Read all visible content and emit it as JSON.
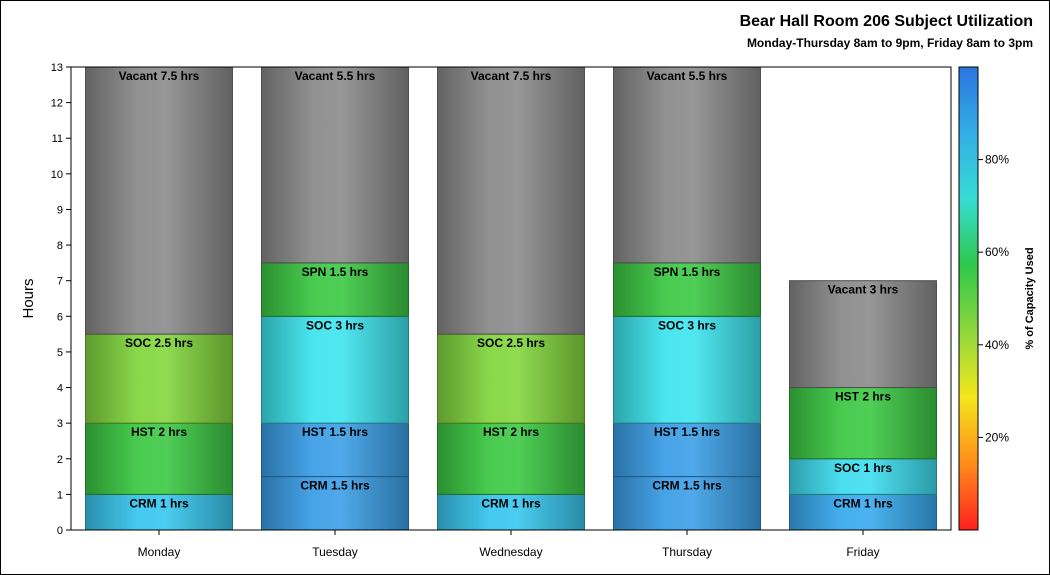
{
  "chart_data": {
    "type": "bar",
    "stacked": true,
    "title": "Bear Hall Room 206 Subject Utilization",
    "subtitle": "Monday-Thursday 8am to 9pm, Friday 8am to 3pm",
    "ylabel": "Hours",
    "ylim": [
      0,
      13
    ],
    "yticks": [
      0,
      1,
      2,
      3,
      4,
      5,
      6,
      7,
      8,
      9,
      10,
      11,
      12,
      13
    ],
    "categories": [
      "Monday",
      "Tuesday",
      "Wednesday",
      "Thursday",
      "Friday"
    ],
    "stacks": [
      [
        {
          "subject": "CRM",
          "hours": 1,
          "label": "CRM 1 hrs",
          "color": "#38c6ee"
        },
        {
          "subject": "HST",
          "hours": 2,
          "label": "HST 2 hrs",
          "color": "#3cc844"
        },
        {
          "subject": "SOC",
          "hours": 2.5,
          "label": "SOC 2.5 hrs",
          "color": "#82d63e"
        },
        {
          "subject": "Vacant",
          "hours": 7.5,
          "label": "Vacant 7.5 hrs",
          "color": "#8a8a8a"
        }
      ],
      [
        {
          "subject": "CRM",
          "hours": 1.5,
          "label": "CRM 1.5 hrs",
          "color": "#3b9ee6"
        },
        {
          "subject": "HST",
          "hours": 1.5,
          "label": "HST 1.5 hrs",
          "color": "#3b9ee6"
        },
        {
          "subject": "SOC",
          "hours": 3,
          "label": "SOC 3 hrs",
          "color": "#3ee4ee"
        },
        {
          "subject": "SPN",
          "hours": 1.5,
          "label": "SPN 1.5 hrs",
          "color": "#3cc844"
        },
        {
          "subject": "Vacant",
          "hours": 5.5,
          "label": "Vacant 5.5 hrs",
          "color": "#8a8a8a"
        }
      ],
      [
        {
          "subject": "CRM",
          "hours": 1,
          "label": "CRM 1 hrs",
          "color": "#38c6ee"
        },
        {
          "subject": "HST",
          "hours": 2,
          "label": "HST 2 hrs",
          "color": "#3cc844"
        },
        {
          "subject": "SOC",
          "hours": 2.5,
          "label": "SOC 2.5 hrs",
          "color": "#82d63e"
        },
        {
          "subject": "Vacant",
          "hours": 7.5,
          "label": "Vacant 7.5 hrs",
          "color": "#8a8a8a"
        }
      ],
      [
        {
          "subject": "CRM",
          "hours": 1.5,
          "label": "CRM 1.5 hrs",
          "color": "#3b9ee6"
        },
        {
          "subject": "HST",
          "hours": 1.5,
          "label": "HST 1.5 hrs",
          "color": "#3b9ee6"
        },
        {
          "subject": "SOC",
          "hours": 3,
          "label": "SOC 3 hrs",
          "color": "#3ee4ee"
        },
        {
          "subject": "SPN",
          "hours": 1.5,
          "label": "SPN 1.5 hrs",
          "color": "#3cc844"
        },
        {
          "subject": "Vacant",
          "hours": 5.5,
          "label": "Vacant 5.5 hrs",
          "color": "#8a8a8a"
        }
      ],
      [
        {
          "subject": "CRM",
          "hours": 1,
          "label": "CRM 1 hrs",
          "color": "#38aaee"
        },
        {
          "subject": "SOC",
          "hours": 1,
          "label": "SOC 1 hrs",
          "color": "#3edcee"
        },
        {
          "subject": "HST",
          "hours": 2,
          "label": "HST 2 hrs",
          "color": "#3cc844"
        },
        {
          "subject": "Vacant",
          "hours": 3,
          "label": "Vacant 3 hrs",
          "color": "#8a8a8a"
        }
      ]
    ],
    "colorbar": {
      "label": "% of Capacity Used",
      "ticks": [
        "20%",
        "40%",
        "60%",
        "80%"
      ],
      "tick_values": [
        20,
        40,
        60,
        80
      ],
      "range": [
        0,
        100
      ],
      "gradient": [
        "#ff2020",
        "#ff8c1a",
        "#f5e61c",
        "#8ed83c",
        "#2ec84a",
        "#36dcd4",
        "#34aee6",
        "#2a76e0"
      ]
    },
    "grid": false,
    "legend": "colorbar-right"
  }
}
